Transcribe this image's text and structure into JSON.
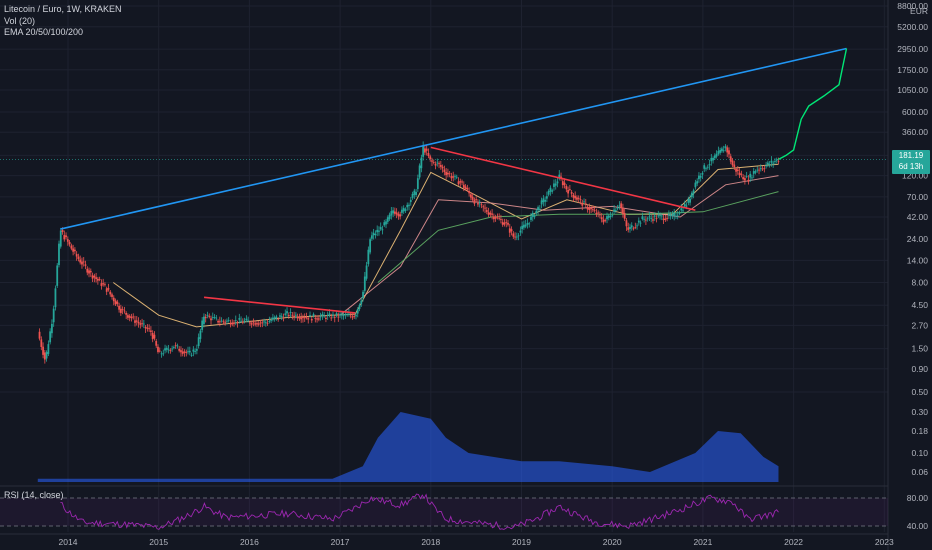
{
  "legend": {
    "title": "Litecoin / Euro, 1W, KRAKEN",
    "vol": "Vol (20)",
    "ema": "EMA 20/50/100/200"
  },
  "rsi_label": "RSI (14, close)",
  "price_badge": {
    "price": "181.19",
    "countdown": "6d 13h"
  },
  "colors": {
    "background": "#131722",
    "up": "#26a69a",
    "down": "#ef5350",
    "trendline_blue": "#2196f3",
    "trendline_red": "#f23645",
    "projection": "#00e676",
    "volume": "#2962ff",
    "rsi": "#9c27b0"
  },
  "chart_data": [
    {
      "type": "candlestick",
      "title": "Litecoin / Euro, 1W, KRAKEN",
      "y_scale": "log",
      "y_unit": "EUR",
      "y_ticks": [
        "8800.00",
        "5200.00",
        "2950.00",
        "1750.00",
        "1050.00",
        "600.00",
        "360.00",
        "200.00",
        "120.00",
        "70.00",
        "42.00",
        "24.00",
        "14.00",
        "8.00",
        "4.50",
        "2.70",
        "1.50",
        "0.90",
        "0.50"
      ],
      "x_ticks": [
        "2014",
        "2015",
        "2016",
        "2017",
        "2018",
        "2019",
        "2020",
        "2021",
        "2022",
        "2023"
      ],
      "price_path": [
        {
          "x": "2013-09",
          "y": 2.3
        },
        {
          "x": "2013-10",
          "y": 1.1
        },
        {
          "x": "2013-11",
          "y": 3.5
        },
        {
          "x": "2013-12",
          "y": 30
        },
        {
          "x": "2014-02",
          "y": 16
        },
        {
          "x": "2014-04",
          "y": 10
        },
        {
          "x": "2014-06",
          "y": 7
        },
        {
          "x": "2014-08",
          "y": 4
        },
        {
          "x": "2014-10",
          "y": 3
        },
        {
          "x": "2014-12",
          "y": 2.3
        },
        {
          "x": "2015-01",
          "y": 1.3
        },
        {
          "x": "2015-03",
          "y": 1.6
        },
        {
          "x": "2015-05",
          "y": 1.3
        },
        {
          "x": "2015-06",
          "y": 1.5
        },
        {
          "x": "2015-07",
          "y": 3.5
        },
        {
          "x": "2015-09",
          "y": 3
        },
        {
          "x": "2015-12",
          "y": 3
        },
        {
          "x": "2016-03",
          "y": 2.9
        },
        {
          "x": "2016-06",
          "y": 3.6
        },
        {
          "x": "2016-09",
          "y": 3.3
        },
        {
          "x": "2016-12",
          "y": 3.4
        },
        {
          "x": "2017-03",
          "y": 3.5
        },
        {
          "x": "2017-04",
          "y": 6
        },
        {
          "x": "2017-05",
          "y": 25
        },
        {
          "x": "2017-07",
          "y": 35
        },
        {
          "x": "2017-08",
          "y": 50
        },
        {
          "x": "2017-09",
          "y": 45
        },
        {
          "x": "2017-11",
          "y": 80
        },
        {
          "x": "2017-12",
          "y": 250
        },
        {
          "x": "2018-01",
          "y": 170
        },
        {
          "x": "2018-02",
          "y": 160
        },
        {
          "x": "2018-03",
          "y": 130
        },
        {
          "x": "2018-05",
          "y": 100
        },
        {
          "x": "2018-07",
          "y": 60
        },
        {
          "x": "2018-09",
          "y": 45
        },
        {
          "x": "2018-11",
          "y": 35
        },
        {
          "x": "2018-12",
          "y": 25
        },
        {
          "x": "2019-02",
          "y": 38
        },
        {
          "x": "2019-04",
          "y": 65
        },
        {
          "x": "2019-06",
          "y": 115
        },
        {
          "x": "2019-07",
          "y": 85
        },
        {
          "x": "2019-09",
          "y": 60
        },
        {
          "x": "2019-11",
          "y": 45
        },
        {
          "x": "2019-12",
          "y": 38
        },
        {
          "x": "2020-02",
          "y": 60
        },
        {
          "x": "2020-03",
          "y": 30
        },
        {
          "x": "2020-05",
          "y": 40
        },
        {
          "x": "2020-07",
          "y": 42
        },
        {
          "x": "2020-09",
          "y": 42
        },
        {
          "x": "2020-11",
          "y": 60
        },
        {
          "x": "2020-12",
          "y": 100
        },
        {
          "x": "2021-01",
          "y": 140
        },
        {
          "x": "2021-02",
          "y": 170
        },
        {
          "x": "2021-04",
          "y": 250
        },
        {
          "x": "2021-05",
          "y": 150
        },
        {
          "x": "2021-06",
          "y": 120
        },
        {
          "x": "2021-07",
          "y": 110
        },
        {
          "x": "2021-08",
          "y": 140
        },
        {
          "x": "2021-09",
          "y": 150
        },
        {
          "x": "2021-10",
          "y": 165
        },
        {
          "x": "2021-11",
          "y": 181.19
        }
      ],
      "ema_lines": [
        {
          "name": "EMA 20",
          "color": "#ffcc80",
          "points": [
            {
              "x": "2014-07",
              "y": 8
            },
            {
              "x": "2015-01",
              "y": 3.5
            },
            {
              "x": "2015-06",
              "y": 2.6
            },
            {
              "x": "2016-06",
              "y": 3.3
            },
            {
              "x": "2017-03",
              "y": 3.6
            },
            {
              "x": "2017-09",
              "y": 30
            },
            {
              "x": "2018-01",
              "y": 130
            },
            {
              "x": "2018-06",
              "y": 80
            },
            {
              "x": "2019-01",
              "y": 40
            },
            {
              "x": "2019-07",
              "y": 65
            },
            {
              "x": "2020-03",
              "y": 45
            },
            {
              "x": "2020-09",
              "y": 45
            },
            {
              "x": "2021-03",
              "y": 140
            },
            {
              "x": "2021-11",
              "y": 160
            }
          ]
        },
        {
          "name": "EMA 50",
          "color": "#ef9a9a",
          "points": [
            {
              "x": "2017-01",
              "y": 3.5
            },
            {
              "x": "2017-09",
              "y": 12
            },
            {
              "x": "2018-02",
              "y": 65
            },
            {
              "x": "2018-09",
              "y": 60
            },
            {
              "x": "2019-04",
              "y": 50
            },
            {
              "x": "2020-01",
              "y": 55
            },
            {
              "x": "2020-10",
              "y": 42
            },
            {
              "x": "2021-04",
              "y": 95
            },
            {
              "x": "2021-11",
              "y": 120
            }
          ]
        },
        {
          "name": "EMA 100",
          "color": "#66bb6a",
          "points": [
            {
              "x": "2017-06",
              "y": 8
            },
            {
              "x": "2018-02",
              "y": 30
            },
            {
              "x": "2018-09",
              "y": 42
            },
            {
              "x": "2019-06",
              "y": 45
            },
            {
              "x": "2020-04",
              "y": 45
            },
            {
              "x": "2021-01",
              "y": 48
            },
            {
              "x": "2021-11",
              "y": 80
            }
          ]
        }
      ],
      "trendlines": [
        {
          "name": "blue support",
          "color": "#2196f3",
          "from": {
            "x": "2013-12",
            "y": 31
          },
          "to": {
            "x": "2022-08",
            "y": 3000
          }
        },
        {
          "name": "red resistance 2018-2020",
          "color": "#f23645",
          "from": {
            "x": "2018-01",
            "y": 245
          },
          "to": {
            "x": "2020-12",
            "y": 50
          }
        },
        {
          "name": "red resistance 2014-2016",
          "color": "#f23645",
          "from": {
            "x": "2015-07",
            "y": 5.5
          },
          "to": {
            "x": "2017-03",
            "y": 3.7
          }
        }
      ],
      "projection": [
        {
          "x": "2021-11",
          "y": 181
        },
        {
          "x": "2021-12",
          "y": 200
        },
        {
          "x": "2022-01",
          "y": 230
        },
        {
          "x": "2022-02",
          "y": 500
        },
        {
          "x": "2022-03",
          "y": 700
        },
        {
          "x": "2022-05",
          "y": 900
        },
        {
          "x": "2022-07",
          "y": 1200
        },
        {
          "x": "2022-08",
          "y": 3000
        }
      ]
    },
    {
      "type": "area",
      "name": "Vol (20)",
      "y_ticks": [
        "0.30",
        "0.18",
        "0.10",
        "0.06"
      ],
      "points": [
        {
          "x": "2013-09",
          "y": 0.05
        },
        {
          "x": "2016-12",
          "y": 0.05
        },
        {
          "x": "2017-04",
          "y": 0.07
        },
        {
          "x": "2017-06",
          "y": 0.15
        },
        {
          "x": "2017-09",
          "y": 0.3
        },
        {
          "x": "2018-01",
          "y": 0.25
        },
        {
          "x": "2018-03",
          "y": 0.15
        },
        {
          "x": "2018-06",
          "y": 0.1
        },
        {
          "x": "2019-01",
          "y": 0.08
        },
        {
          "x": "2019-06",
          "y": 0.08
        },
        {
          "x": "2020-01",
          "y": 0.07
        },
        {
          "x": "2020-06",
          "y": 0.06
        },
        {
          "x": "2020-12",
          "y": 0.1
        },
        {
          "x": "2021-03",
          "y": 0.18
        },
        {
          "x": "2021-06",
          "y": 0.17
        },
        {
          "x": "2021-09",
          "y": 0.09
        },
        {
          "x": "2021-11",
          "y": 0.07
        }
      ]
    },
    {
      "type": "line",
      "name": "RSI (14, close)",
      "y_ticks": [
        "80.00",
        "40.00"
      ],
      "ylim": [
        20,
        100
      ],
      "points": [
        {
          "x": "2013-12",
          "y": 72
        },
        {
          "x": "2014-03",
          "y": 45
        },
        {
          "x": "2014-09",
          "y": 42
        },
        {
          "x": "2015-01",
          "y": 38
        },
        {
          "x": "2015-07",
          "y": 68
        },
        {
          "x": "2015-10",
          "y": 52
        },
        {
          "x": "2016-06",
          "y": 58
        },
        {
          "x": "2016-12",
          "y": 50
        },
        {
          "x": "2017-05",
          "y": 80
        },
        {
          "x": "2017-09",
          "y": 70
        },
        {
          "x": "2017-12",
          "y": 86
        },
        {
          "x": "2018-03",
          "y": 50
        },
        {
          "x": "2018-09",
          "y": 42
        },
        {
          "x": "2018-12",
          "y": 38
        },
        {
          "x": "2019-06",
          "y": 68
        },
        {
          "x": "2019-11",
          "y": 45
        },
        {
          "x": "2020-03",
          "y": 40
        },
        {
          "x": "2020-08",
          "y": 56
        },
        {
          "x": "2020-12",
          "y": 72
        },
        {
          "x": "2021-02",
          "y": 80
        },
        {
          "x": "2021-05",
          "y": 74
        },
        {
          "x": "2021-07",
          "y": 50
        },
        {
          "x": "2021-09",
          "y": 54
        },
        {
          "x": "2021-11",
          "y": 60
        }
      ]
    }
  ]
}
